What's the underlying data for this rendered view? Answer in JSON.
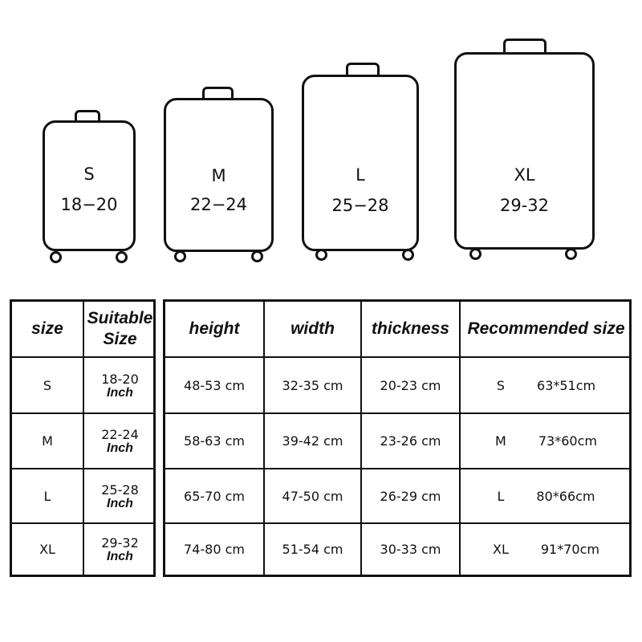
{
  "suitcases": [
    {
      "size": "S",
      "range": "18−20"
    },
    {
      "size": "M",
      "range": "22−24"
    },
    {
      "size": "L",
      "range": "25−28"
    },
    {
      "size": "XL",
      "range": "29-32"
    }
  ],
  "left_table": {
    "headers": [
      "size",
      "Suitable Size"
    ],
    "unit": "Inch",
    "rows": [
      {
        "size": "S",
        "suitable": "18-20"
      },
      {
        "size": "M",
        "suitable": "22-24"
      },
      {
        "size": "L",
        "suitable": "25-28"
      },
      {
        "size": "XL",
        "suitable": "29-32"
      }
    ]
  },
  "right_table": {
    "headers": [
      "height",
      "width",
      "thickness",
      "Recommended size"
    ],
    "rows": [
      {
        "height": "48-53 cm",
        "width": "32-35 cm",
        "thickness": "20-23 cm",
        "rec_size": "S",
        "rec_dims": "63*51cm"
      },
      {
        "height": "58-63 cm",
        "width": "39-42 cm",
        "thickness": "23-26 cm",
        "rec_size": "M",
        "rec_dims": "73*60cm"
      },
      {
        "height": "65-70 cm",
        "width": "47-50 cm",
        "thickness": "26-29 cm",
        "rec_size": "L",
        "rec_dims": "80*66cm"
      },
      {
        "height": "74-80 cm",
        "width": "51-54 cm",
        "thickness": "30-33 cm",
        "rec_size": "XL",
        "rec_dims": "91*70cm"
      }
    ]
  }
}
